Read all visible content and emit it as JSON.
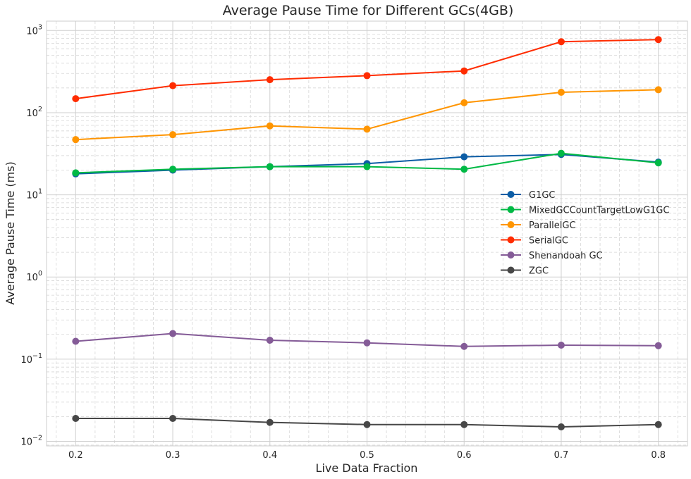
{
  "chart_data": {
    "type": "line",
    "title": "Average Pause Time for Different GCs(4GB)",
    "xlabel": "Live Data Fraction",
    "ylabel": "Average Pause Time (ms)",
    "yscale": "log",
    "xlim": [
      0.17,
      0.83
    ],
    "ylim": [
      0.0088,
      1300
    ],
    "grid": true,
    "legend_position": "center-right",
    "x": [
      0.2,
      0.3,
      0.4,
      0.5,
      0.6,
      0.7,
      0.8
    ],
    "x_tick_labels": [
      "0.2",
      "0.3",
      "0.4",
      "0.5",
      "0.6",
      "0.7",
      "0.8"
    ],
    "y_ticks": [
      {
        "value": 0.01,
        "base": "10",
        "exp": "−2"
      },
      {
        "value": 0.1,
        "base": "10",
        "exp": "−1"
      },
      {
        "value": 1,
        "base": "10",
        "exp": "0"
      },
      {
        "value": 10,
        "base": "10",
        "exp": "1"
      },
      {
        "value": 100,
        "base": "10",
        "exp": "2"
      },
      {
        "value": 1000,
        "base": "10",
        "exp": "3"
      }
    ],
    "series": [
      {
        "name": "G1GC",
        "color": "#0c5da5",
        "values": [
          18,
          20,
          22,
          24,
          29,
          31,
          25
        ]
      },
      {
        "name": "MixedGCCountTargetLowG1GC",
        "color": "#00b945",
        "values": [
          18.5,
          20.5,
          22,
          22,
          20.5,
          32,
          24.5
        ]
      },
      {
        "name": "ParallelGC",
        "color": "#ff9500",
        "values": [
          47,
          54,
          69,
          63,
          132,
          177,
          190
        ]
      },
      {
        "name": "SerialGC",
        "color": "#ff2c00",
        "values": [
          148,
          213,
          252,
          282,
          322,
          730,
          775
        ]
      },
      {
        "name": "Shenandoah GC",
        "color": "#845b97",
        "values": [
          0.165,
          0.205,
          0.17,
          0.158,
          0.143,
          0.148,
          0.146
        ]
      },
      {
        "name": "ZGC",
        "color": "#474747",
        "values": [
          0.019,
          0.019,
          0.017,
          0.016,
          0.016,
          0.015,
          0.016
        ]
      }
    ]
  }
}
